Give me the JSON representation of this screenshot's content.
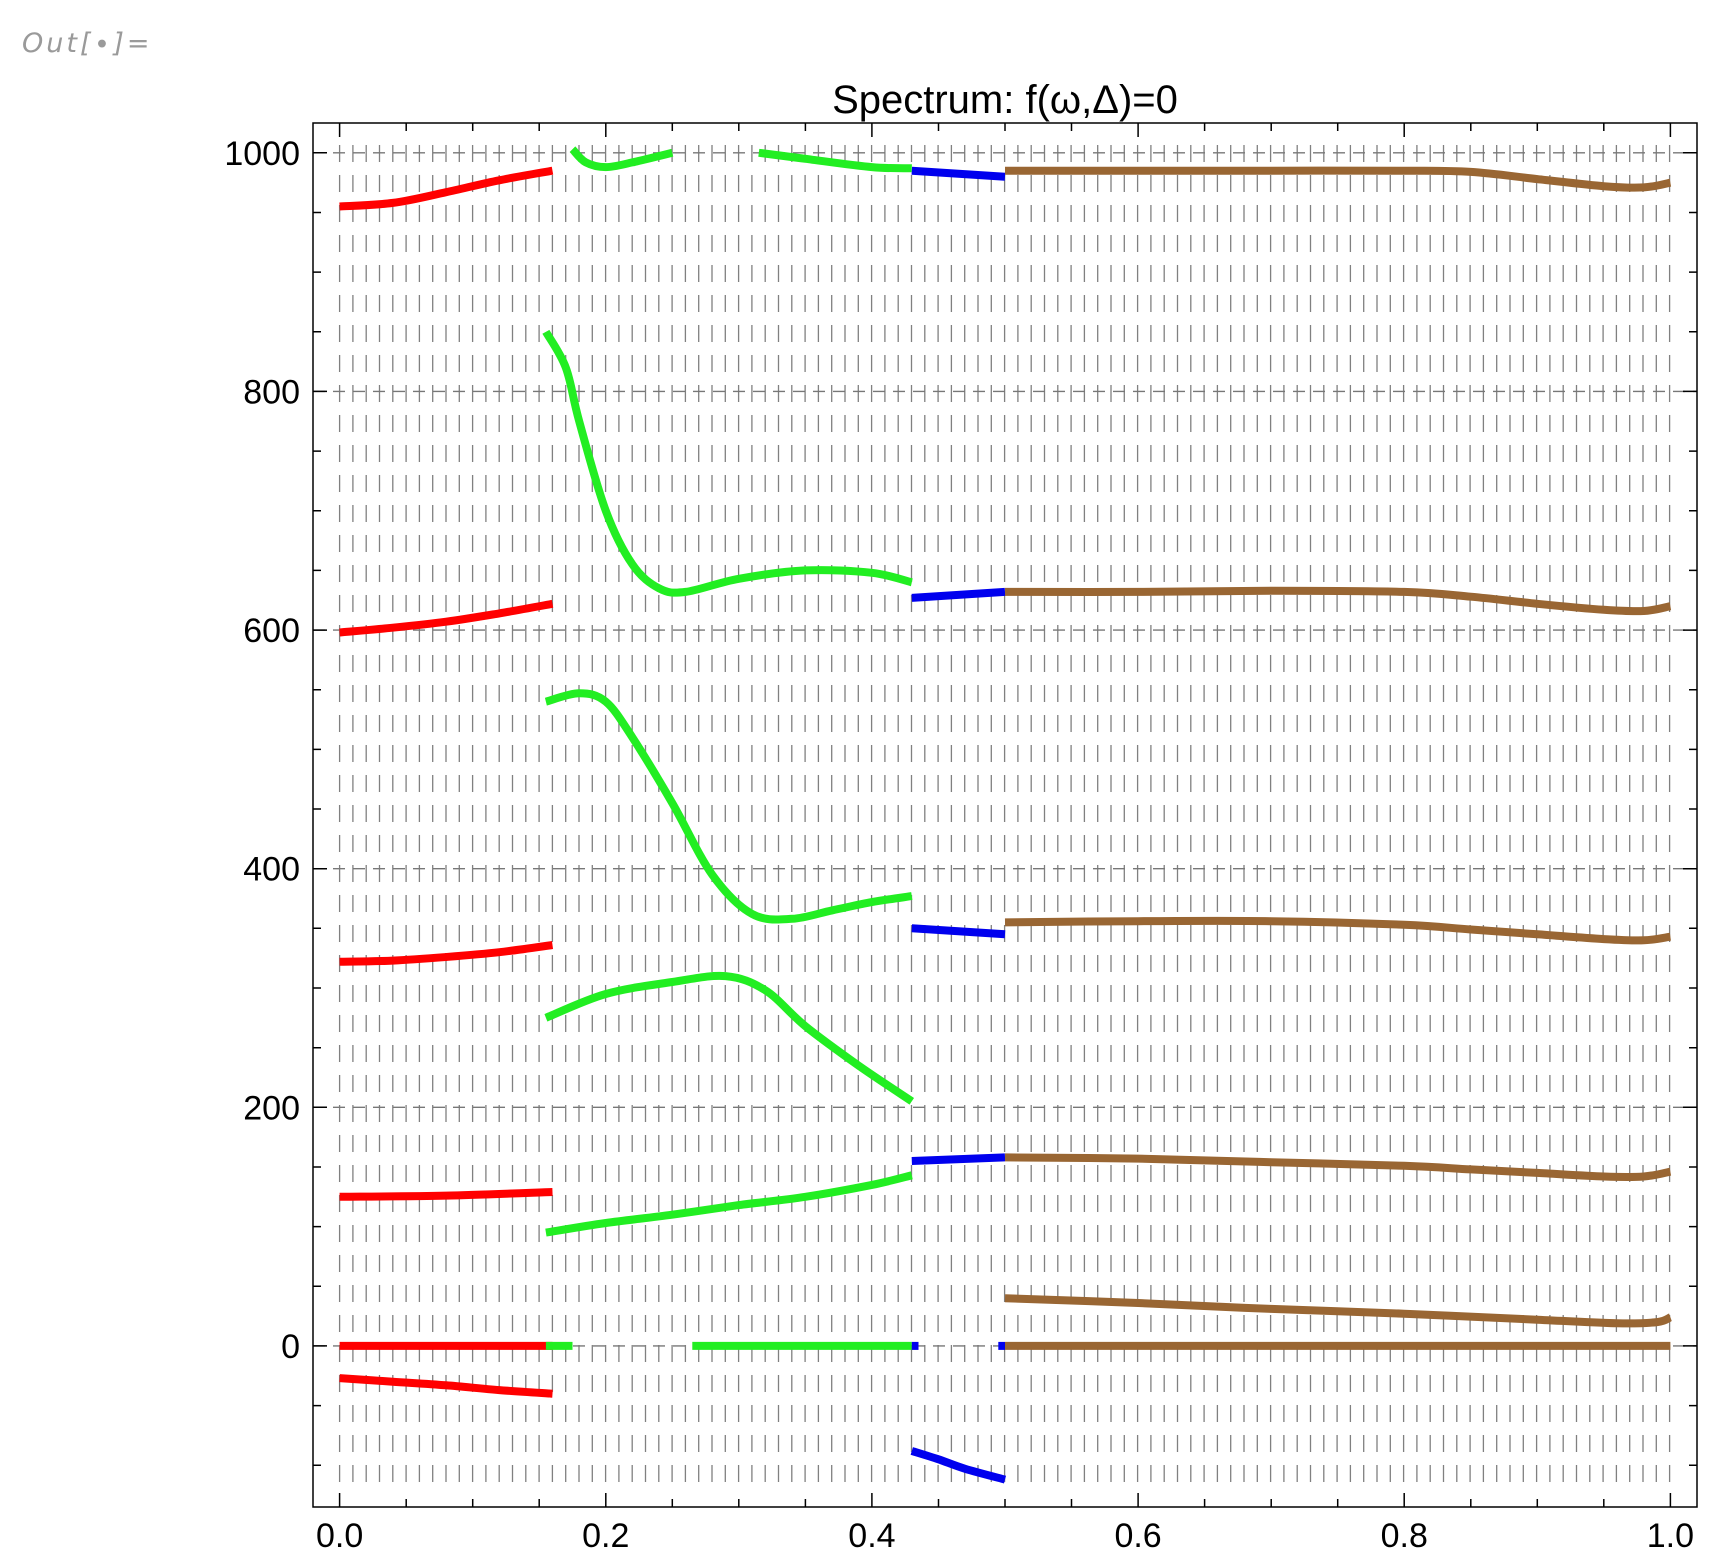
{
  "cell": {
    "out_label": "Out[∙]="
  },
  "chart_data": {
    "type": "line",
    "title": "Spectrum: f(ω,Δ)=0",
    "xlabel": "",
    "ylabel": "",
    "xlim": [
      -0.02,
      1.02
    ],
    "ylim": [
      -135,
      1025
    ],
    "x_ticks": [
      0.0,
      0.2,
      0.4,
      0.6,
      0.8,
      1.0
    ],
    "x_tick_labels": [
      "0.0",
      "0.2",
      "0.4",
      "0.6",
      "0.8",
      "1.0"
    ],
    "y_ticks": [
      0,
      200,
      400,
      600,
      800,
      1000
    ],
    "y_tick_labels": [
      "0",
      "200",
      "400",
      "600",
      "800",
      "1000"
    ],
    "reference_lines_y": [
      0,
      200,
      400,
      600,
      800,
      1000
    ],
    "colors": {
      "red": "#ff0000",
      "green": "#22ee22",
      "blue": "#0000ee",
      "brown": "#996633",
      "grid": "#555555"
    },
    "series": [
      {
        "color": "red",
        "points": [
          [
            0.0,
            955
          ],
          [
            0.04,
            958
          ],
          [
            0.08,
            967
          ],
          [
            0.12,
            977
          ],
          [
            0.16,
            985
          ]
        ]
      },
      {
        "color": "red",
        "points": [
          [
            0.0,
            598
          ],
          [
            0.04,
            602
          ],
          [
            0.08,
            607
          ],
          [
            0.12,
            614
          ],
          [
            0.16,
            622
          ]
        ]
      },
      {
        "color": "red",
        "points": [
          [
            0.0,
            322
          ],
          [
            0.04,
            323
          ],
          [
            0.08,
            326
          ],
          [
            0.12,
            330
          ],
          [
            0.16,
            336
          ]
        ]
      },
      {
        "color": "red",
        "points": [
          [
            0.0,
            125
          ],
          [
            0.08,
            126
          ],
          [
            0.16,
            129
          ]
        ]
      },
      {
        "color": "red",
        "points": [
          [
            0.0,
            0
          ],
          [
            0.16,
            0
          ]
        ]
      },
      {
        "color": "red",
        "points": [
          [
            0.0,
            -27
          ],
          [
            0.04,
            -30
          ],
          [
            0.08,
            -33
          ],
          [
            0.12,
            -37
          ],
          [
            0.16,
            -40
          ]
        ]
      },
      {
        "color": "green",
        "points": [
          [
            0.175,
            1003
          ],
          [
            0.185,
            992
          ],
          [
            0.2,
            988
          ],
          [
            0.22,
            992
          ],
          [
            0.25,
            1000
          ]
        ]
      },
      {
        "color": "green",
        "points": [
          [
            0.315,
            1000
          ],
          [
            0.35,
            995
          ],
          [
            0.4,
            988
          ],
          [
            0.43,
            987
          ]
        ]
      },
      {
        "color": "green",
        "points": [
          [
            0.155,
            850
          ],
          [
            0.17,
            820
          ],
          [
            0.18,
            775
          ],
          [
            0.2,
            700
          ],
          [
            0.22,
            655
          ],
          [
            0.24,
            635
          ],
          [
            0.26,
            632
          ],
          [
            0.3,
            643
          ],
          [
            0.35,
            650
          ],
          [
            0.4,
            648
          ],
          [
            0.43,
            640
          ]
        ]
      },
      {
        "color": "green",
        "points": [
          [
            0.155,
            540
          ],
          [
            0.18,
            547
          ],
          [
            0.2,
            540
          ],
          [
            0.22,
            510
          ],
          [
            0.25,
            455
          ],
          [
            0.28,
            395
          ],
          [
            0.31,
            362
          ],
          [
            0.34,
            358
          ],
          [
            0.37,
            365
          ],
          [
            0.4,
            372
          ],
          [
            0.43,
            377
          ]
        ]
      },
      {
        "color": "green",
        "points": [
          [
            0.155,
            275
          ],
          [
            0.2,
            295
          ],
          [
            0.25,
            305
          ],
          [
            0.29,
            310
          ],
          [
            0.32,
            298
          ],
          [
            0.35,
            268
          ],
          [
            0.39,
            235
          ],
          [
            0.43,
            205
          ]
        ]
      },
      {
        "color": "green",
        "points": [
          [
            0.155,
            95
          ],
          [
            0.2,
            103
          ],
          [
            0.25,
            110
          ],
          [
            0.3,
            118
          ],
          [
            0.35,
            125
          ],
          [
            0.4,
            135
          ],
          [
            0.43,
            143
          ]
        ]
      },
      {
        "color": "green",
        "points": [
          [
            0.155,
            0
          ],
          [
            0.175,
            0
          ]
        ]
      },
      {
        "color": "green",
        "points": [
          [
            0.265,
            0
          ],
          [
            0.43,
            0
          ]
        ]
      },
      {
        "color": "blue",
        "points": [
          [
            0.43,
            985
          ],
          [
            0.5,
            980
          ]
        ]
      },
      {
        "color": "blue",
        "points": [
          [
            0.43,
            627
          ],
          [
            0.5,
            632
          ]
        ]
      },
      {
        "color": "blue",
        "points": [
          [
            0.43,
            350
          ],
          [
            0.5,
            345
          ]
        ]
      },
      {
        "color": "blue",
        "points": [
          [
            0.43,
            155
          ],
          [
            0.5,
            158
          ]
        ]
      },
      {
        "color": "blue",
        "points": [
          [
            0.43,
            0
          ],
          [
            0.435,
            0
          ]
        ]
      },
      {
        "color": "blue",
        "points": [
          [
            0.495,
            0
          ],
          [
            0.5,
            0
          ]
        ]
      },
      {
        "color": "blue",
        "points": [
          [
            0.43,
            -88
          ],
          [
            0.45,
            -95
          ],
          [
            0.47,
            -103
          ],
          [
            0.5,
            -112
          ]
        ]
      },
      {
        "color": "brown",
        "points": [
          [
            0.5,
            985
          ],
          [
            0.6,
            985
          ],
          [
            0.7,
            985
          ],
          [
            0.8,
            985
          ],
          [
            0.85,
            984
          ],
          [
            0.9,
            978
          ],
          [
            0.95,
            972
          ],
          [
            0.98,
            971
          ],
          [
            1.0,
            975
          ]
        ]
      },
      {
        "color": "brown",
        "points": [
          [
            0.5,
            632
          ],
          [
            0.6,
            632
          ],
          [
            0.7,
            633
          ],
          [
            0.8,
            632
          ],
          [
            0.85,
            628
          ],
          [
            0.9,
            622
          ],
          [
            0.95,
            617
          ],
          [
            0.98,
            616
          ],
          [
            1.0,
            620
          ]
        ]
      },
      {
        "color": "brown",
        "points": [
          [
            0.5,
            355
          ],
          [
            0.6,
            356
          ],
          [
            0.7,
            356
          ],
          [
            0.8,
            353
          ],
          [
            0.85,
            349
          ],
          [
            0.9,
            345
          ],
          [
            0.95,
            341
          ],
          [
            0.98,
            340
          ],
          [
            1.0,
            343
          ]
        ]
      },
      {
        "color": "brown",
        "points": [
          [
            0.5,
            158
          ],
          [
            0.6,
            157
          ],
          [
            0.7,
            154
          ],
          [
            0.8,
            151
          ],
          [
            0.85,
            148
          ],
          [
            0.9,
            145
          ],
          [
            0.95,
            142
          ],
          [
            0.98,
            142
          ],
          [
            1.0,
            146
          ]
        ]
      },
      {
        "color": "brown",
        "points": [
          [
            0.5,
            40
          ],
          [
            0.6,
            36
          ],
          [
            0.7,
            31
          ],
          [
            0.8,
            27
          ],
          [
            0.9,
            22
          ],
          [
            0.96,
            19
          ],
          [
            0.99,
            20
          ],
          [
            1.0,
            24
          ]
        ]
      },
      {
        "color": "brown",
        "points": [
          [
            0.5,
            0
          ],
          [
            1.0,
            0
          ]
        ]
      }
    ]
  }
}
